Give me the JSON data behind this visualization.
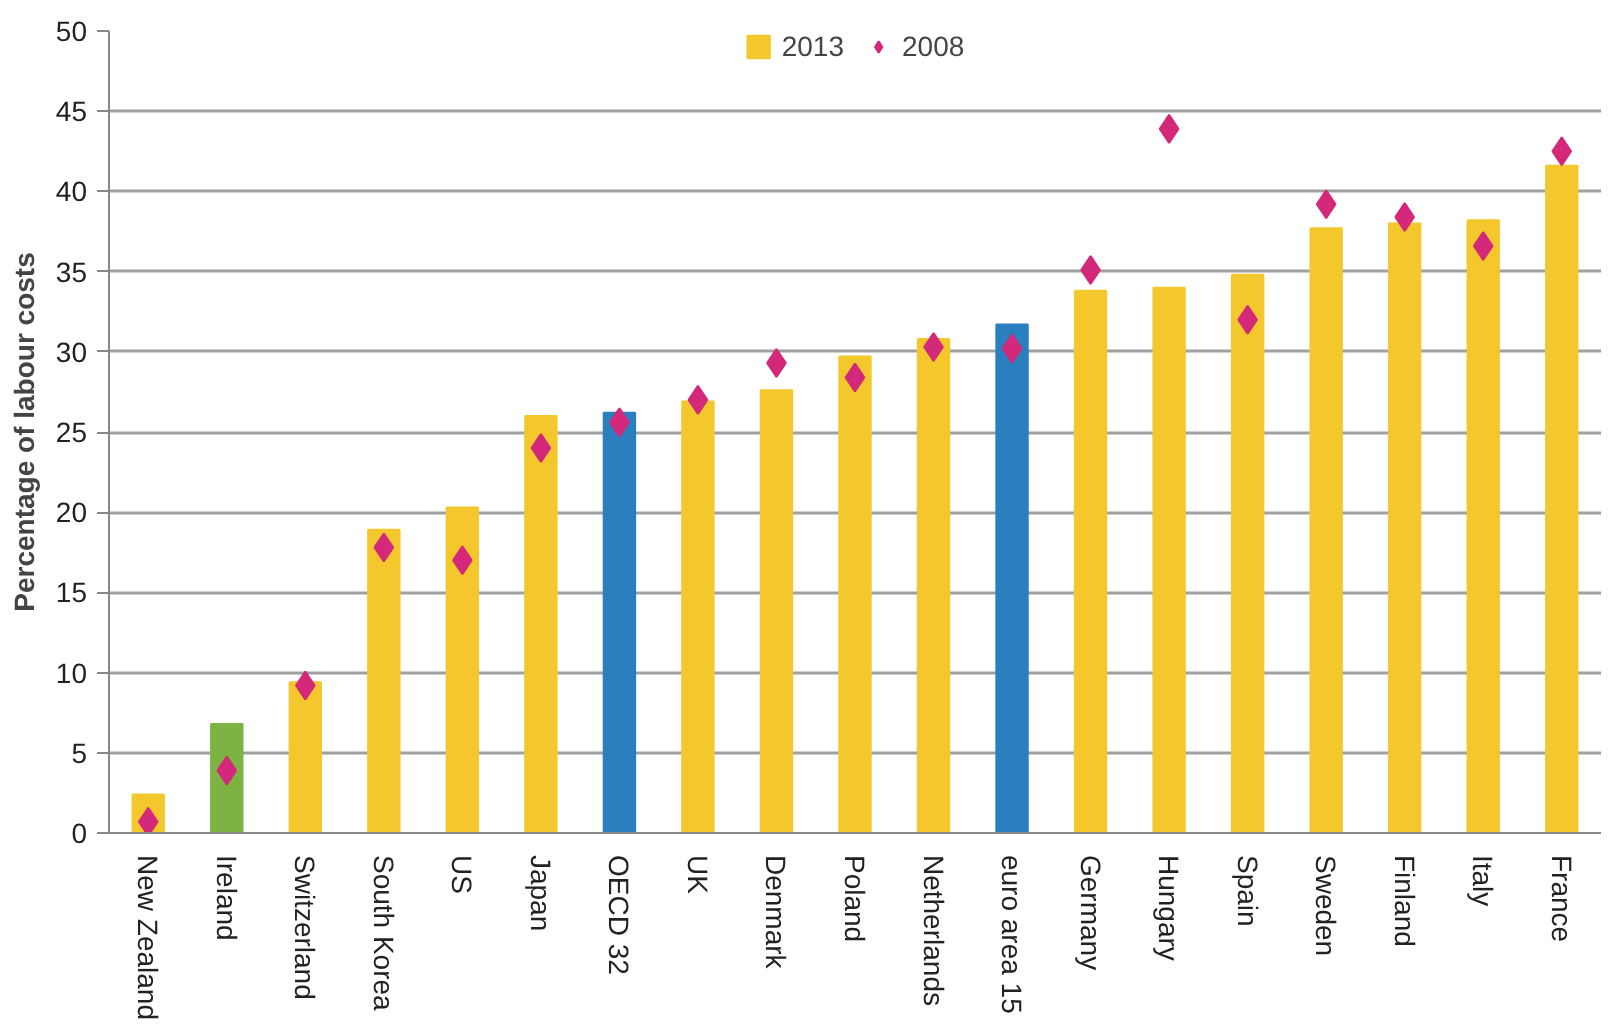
{
  "chart_data": {
    "type": "bar",
    "ylabel": "Percentage of labour costs",
    "categories": [
      "New Zealand",
      "Ireland",
      "Switzerland",
      "South Korea",
      "US",
      "Japan",
      "OECD 32",
      "UK",
      "Denmark",
      "Poland",
      "Netherlands",
      "euro area 15",
      "Germany",
      "Hungary",
      "Spain",
      "Sweden",
      "Finland",
      "Italy",
      "France"
    ],
    "series": [
      {
        "name": "2013",
        "colors": [
          "#f4c82c",
          "#7cb342",
          "#f4c82c",
          "#f4c82c",
          "#f4c82c",
          "#f4c82c",
          "#2a7fbf",
          "#f4c82c",
          "#f4c82c",
          "#f4c82c",
          "#f4c82c",
          "#2a7fbf",
          "#f4c82c",
          "#f4c82c",
          "#f4c82c",
          "#f4c82c",
          "#f4c82c",
          "#f4c82c",
          "#f4c82c"
        ],
        "values": [
          2.4,
          6.8,
          9.4,
          18.9,
          20.3,
          26.0,
          26.2,
          26.9,
          27.6,
          29.7,
          30.8,
          31.7,
          33.8,
          34.0,
          34.8,
          37.7,
          38.0,
          38.2,
          41.6
        ]
      },
      {
        "name": "2008",
        "type": "scatter",
        "color": "#d4287a",
        "values": [
          0.7,
          3.9,
          9.2,
          17.8,
          17.0,
          24.0,
          25.6,
          27.0,
          29.3,
          28.4,
          30.3,
          30.2,
          35.1,
          43.9,
          32.0,
          39.2,
          38.4,
          36.6,
          42.5
        ]
      }
    ],
    "marker": "diamond",
    "ylim": [
      0,
      50
    ],
    "yticks": [
      0,
      5,
      10,
      15,
      20,
      25,
      30,
      35,
      40,
      45,
      50
    ],
    "grid": "y",
    "legend": "top"
  }
}
